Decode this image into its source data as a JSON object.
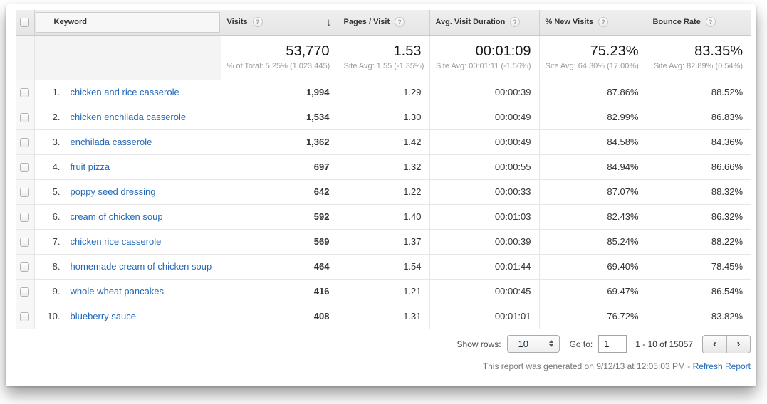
{
  "colors": {
    "link_blue": "#2368b8",
    "header_bg": "#e9e9e9"
  },
  "icons": {
    "help": "?",
    "sort_desc": "↓",
    "prev": "‹",
    "next": "›"
  },
  "table": {
    "headers": {
      "keyword": "Keyword",
      "visits": "Visits",
      "pages": "Pages / Visit",
      "duration": "Avg. Visit Duration",
      "new_visits": "% New Visits",
      "bounce": "Bounce Rate"
    },
    "summary": {
      "visits": {
        "value": "53,770",
        "sub": "% of Total: 5.25% (1,023,445)"
      },
      "pages": {
        "value": "1.53",
        "sub": "Site Avg: 1.55 (-1.35%)"
      },
      "duration": {
        "value": "00:01:09",
        "sub": "Site Avg: 00:01:11 (-1.56%)"
      },
      "new_visits": {
        "value": "75.23%",
        "sub": "Site Avg: 64.30% (17.00%)"
      },
      "bounce": {
        "value": "83.35%",
        "sub": "Site Avg: 82.89% (0.54%)"
      }
    },
    "rows": [
      {
        "rank": "1.",
        "keyword": "chicken and rice casserole",
        "visits": "1,994",
        "pages": "1.29",
        "duration": "00:00:39",
        "new_visits": "87.86%",
        "bounce": "88.52%"
      },
      {
        "rank": "2.",
        "keyword": "chicken enchilada casserole",
        "visits": "1,534",
        "pages": "1.30",
        "duration": "00:00:49",
        "new_visits": "82.99%",
        "bounce": "86.83%"
      },
      {
        "rank": "3.",
        "keyword": "enchilada casserole",
        "visits": "1,362",
        "pages": "1.42",
        "duration": "00:00:49",
        "new_visits": "84.58%",
        "bounce": "84.36%"
      },
      {
        "rank": "4.",
        "keyword": "fruit pizza",
        "visits": "697",
        "pages": "1.32",
        "duration": "00:00:55",
        "new_visits": "84.94%",
        "bounce": "86.66%"
      },
      {
        "rank": "5.",
        "keyword": "poppy seed dressing",
        "visits": "642",
        "pages": "1.22",
        "duration": "00:00:33",
        "new_visits": "87.07%",
        "bounce": "88.32%"
      },
      {
        "rank": "6.",
        "keyword": "cream of chicken soup",
        "visits": "592",
        "pages": "1.40",
        "duration": "00:01:03",
        "new_visits": "82.43%",
        "bounce": "86.32%"
      },
      {
        "rank": "7.",
        "keyword": "chicken rice casserole",
        "visits": "569",
        "pages": "1.37",
        "duration": "00:00:39",
        "new_visits": "85.24%",
        "bounce": "88.22%"
      },
      {
        "rank": "8.",
        "keyword": "homemade cream of chicken soup",
        "visits": "464",
        "pages": "1.54",
        "duration": "00:01:44",
        "new_visits": "69.40%",
        "bounce": "78.45%"
      },
      {
        "rank": "9.",
        "keyword": "whole wheat pancakes",
        "visits": "416",
        "pages": "1.21",
        "duration": "00:00:45",
        "new_visits": "69.47%",
        "bounce": "86.54%"
      },
      {
        "rank": "10.",
        "keyword": "blueberry sauce",
        "visits": "408",
        "pages": "1.31",
        "duration": "00:01:01",
        "new_visits": "76.72%",
        "bounce": "83.82%"
      }
    ]
  },
  "pagination": {
    "show_rows_label": "Show rows:",
    "show_rows_value": "10",
    "goto_label": "Go to:",
    "goto_value": "1",
    "range_text": "1 - 10 of 15057"
  },
  "report_note": {
    "text": "This report was generated on 9/12/13 at 12:05:03 PM - ",
    "link": "Refresh Report"
  }
}
